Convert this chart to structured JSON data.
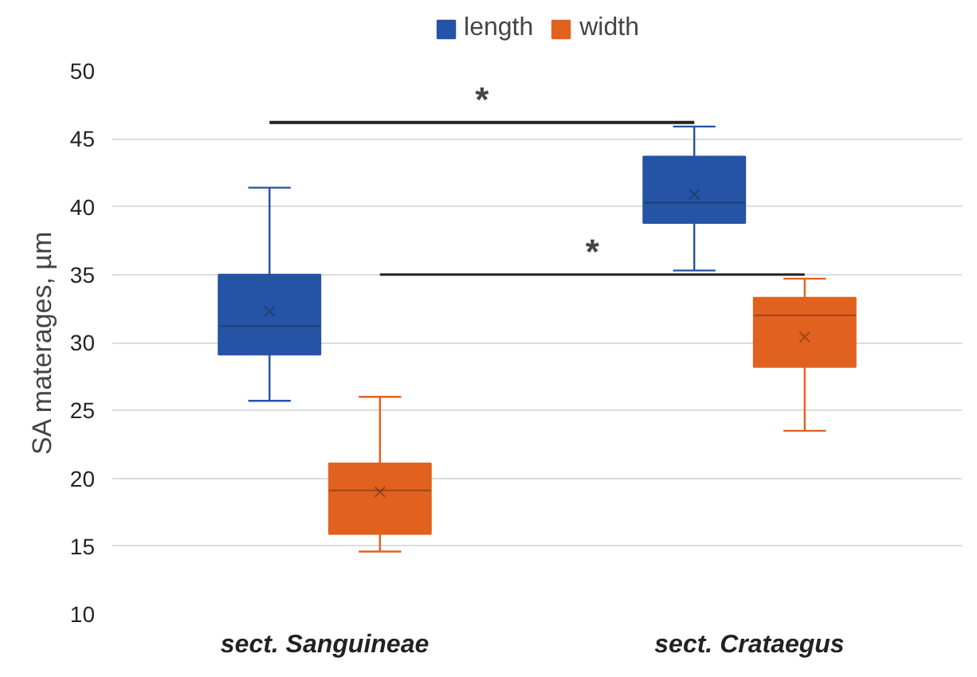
{
  "chart_data": {
    "type": "box",
    "ylabel": "SA materages, µm",
    "categories": [
      "sect. Sanguineae",
      "sect. Crataegus"
    ],
    "series": [
      {
        "name": "length",
        "color": "#2553a5",
        "boxes": [
          {
            "low": 25.7,
            "q1": 29.1,
            "median": 31.2,
            "q3": 35.0,
            "high": 41.4,
            "mean": 32.3
          },
          {
            "low": 35.3,
            "q1": 38.8,
            "median": 40.3,
            "q3": 43.7,
            "high": 45.9,
            "mean": 40.9
          }
        ]
      },
      {
        "name": "width",
        "color": "#e0621e",
        "boxes": [
          {
            "low": 14.6,
            "q1": 15.9,
            "median": 19.1,
            "q3": 21.1,
            "high": 26.0,
            "mean": 19.0
          },
          {
            "low": 23.5,
            "q1": 28.2,
            "median": 32.0,
            "q3": 33.3,
            "high": 34.7,
            "mean": 30.4
          }
        ]
      }
    ],
    "ylim": [
      10,
      50
    ],
    "yticks": [
      10,
      15,
      20,
      25,
      30,
      35,
      40,
      45,
      50
    ],
    "grid": "y",
    "legend": "top",
    "annotations": [
      "*",
      "*"
    ]
  }
}
